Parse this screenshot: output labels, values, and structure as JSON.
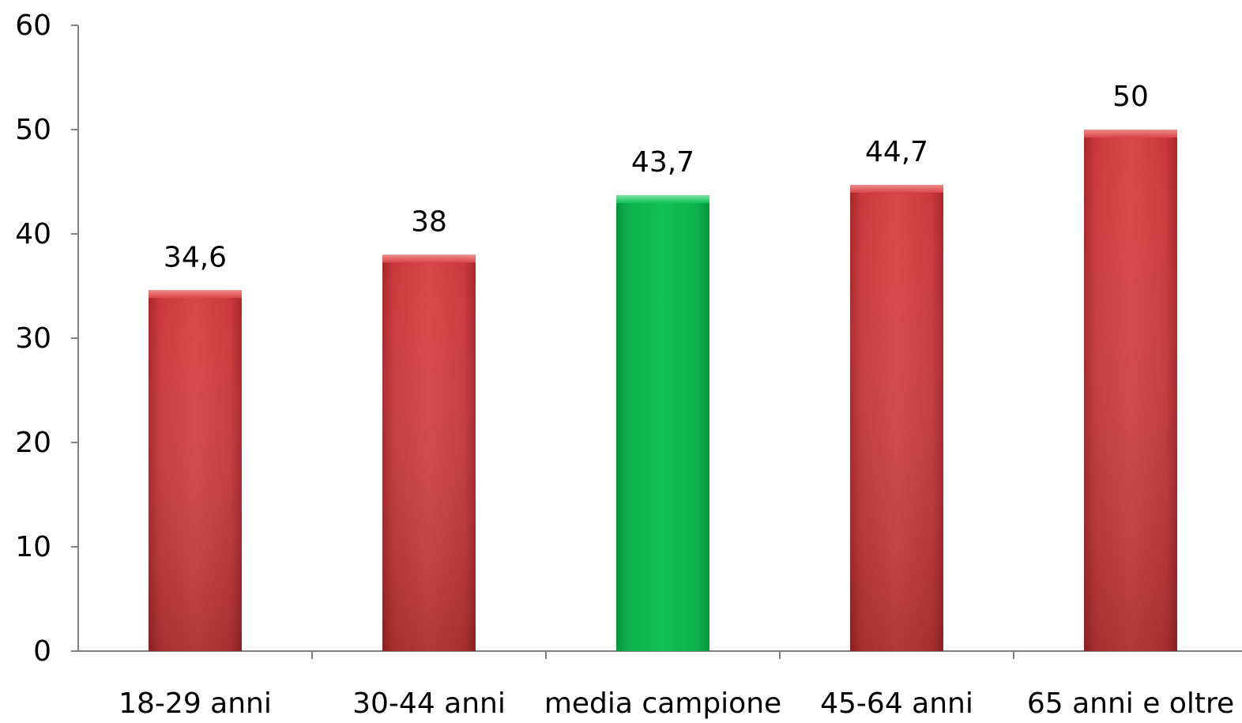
{
  "chart_data": {
    "type": "bar",
    "categories": [
      "18-29 anni",
      "30-44 anni",
      "media campione",
      "45-64 anni",
      "65 anni e oltre"
    ],
    "values": [
      34.6,
      38,
      43.7,
      44.7,
      50
    ],
    "data_labels": [
      "34,6",
      "38",
      "43,7",
      "44,7",
      "50"
    ],
    "ylim": [
      0,
      60
    ],
    "yticks": [
      0,
      10,
      20,
      30,
      40,
      50,
      60
    ],
    "grid": false,
    "legend": "none",
    "title": "",
    "xlabel": "",
    "ylabel": "",
    "colors": {
      "default_bar": "#c9383a",
      "highlight_bar": "#0db14b",
      "axis": "#808080"
    },
    "highlight_index": 2
  }
}
